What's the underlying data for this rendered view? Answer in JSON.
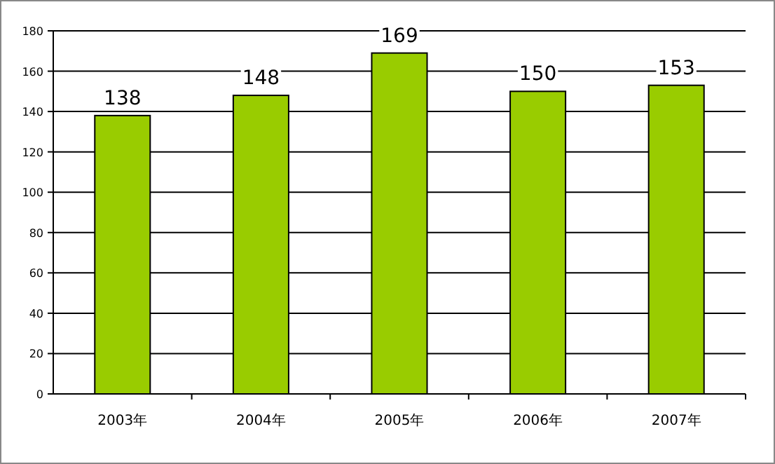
{
  "chart_data": {
    "type": "bar",
    "categories": [
      "2003年",
      "2004年",
      "2005年",
      "2006年",
      "2007年"
    ],
    "values": [
      138,
      148,
      169,
      150,
      153
    ],
    "color": "#99cc00",
    "ylim": [
      0,
      180
    ],
    "yticks": [
      0,
      20,
      40,
      60,
      80,
      100,
      120,
      140,
      160,
      180
    ],
    "grid": "y",
    "data_labels": true
  }
}
